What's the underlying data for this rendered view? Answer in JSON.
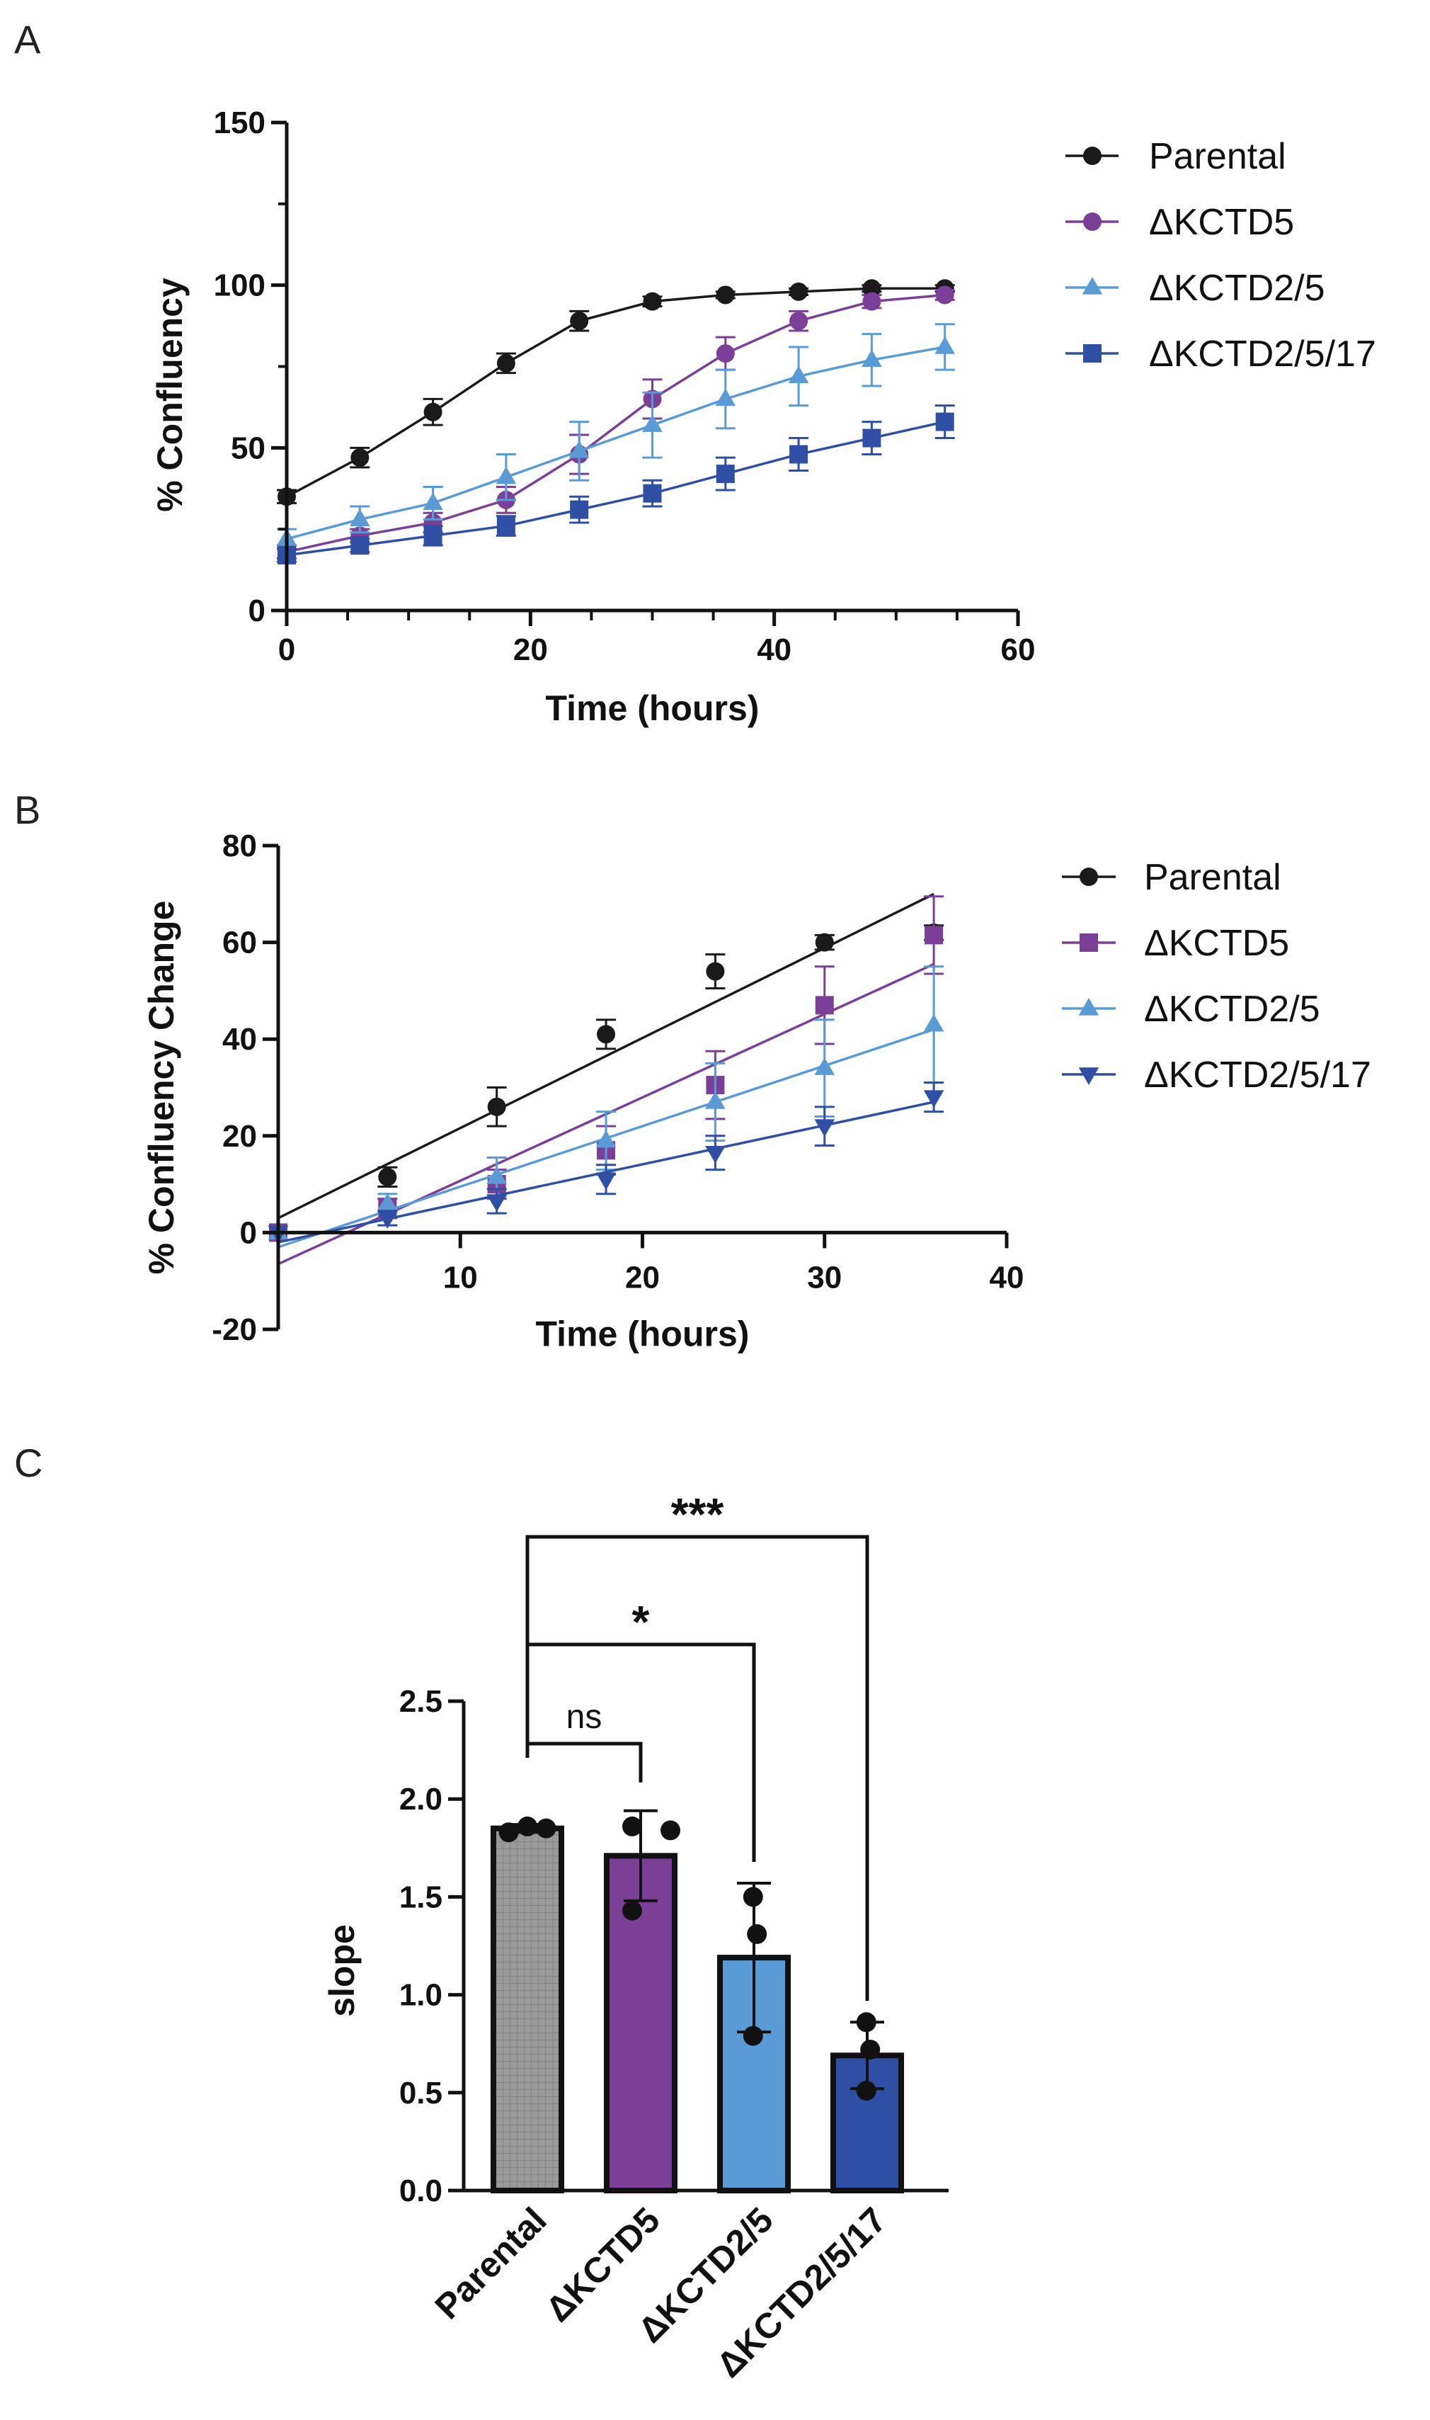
{
  "panels": {
    "a": "A",
    "b": "B",
    "c": "C"
  },
  "colors": {
    "parental": "#1a1a1a",
    "kctd5": "#7b3f98",
    "kctd25": "#5b9bd5",
    "kctd2517": "#2e4fa3",
    "parental_bar": "#9a9a9a"
  },
  "chart_data": [
    {
      "type": "line",
      "panel": "A",
      "title": "",
      "xlabel": "Time (hours)",
      "ylabel": "%  Confluency",
      "xlim": [
        0,
        60
      ],
      "ylim": [
        0,
        150
      ],
      "xticks": [
        0,
        20,
        40,
        60
      ],
      "yticks": [
        0,
        50,
        100,
        150
      ],
      "legend_position": "right",
      "x": [
        0,
        6,
        12,
        18,
        24,
        30,
        36,
        42,
        48,
        54
      ],
      "series": [
        {
          "name": "Parental",
          "key": "parental",
          "marker": "circle",
          "values": [
            35,
            47,
            61,
            76,
            89,
            95,
            97,
            98,
            99,
            99
          ],
          "errors": [
            2,
            3,
            4,
            3,
            3,
            1.5,
            1,
            1,
            1,
            1
          ]
        },
        {
          "name": "ΔKCTD5",
          "key": "kctd5",
          "marker": "circle",
          "values": [
            18,
            23,
            27,
            34,
            48,
            65,
            79,
            89,
            95,
            97
          ],
          "errors": [
            2,
            2,
            3,
            4,
            6,
            6,
            5,
            3,
            2,
            1.5
          ]
        },
        {
          "name": "ΔKCTD2/5",
          "key": "kctd25",
          "marker": "triangle",
          "values": [
            22,
            28,
            33,
            41,
            49,
            57,
            65,
            72,
            77,
            81
          ],
          "errors": [
            3,
            4,
            5,
            7,
            9,
            10,
            9,
            9,
            8,
            7
          ]
        },
        {
          "name": "ΔKCTD2/5/17",
          "key": "kctd2517",
          "marker": "square",
          "values": [
            17,
            20,
            23,
            26,
            31,
            36,
            42,
            48,
            53,
            58
          ],
          "errors": [
            2,
            2,
            3,
            3,
            4,
            4,
            5,
            5,
            5,
            5
          ]
        }
      ]
    },
    {
      "type": "scatter",
      "panel": "B",
      "title": "",
      "xlabel": "Time (hours)",
      "ylabel": "% Confluency Change",
      "xlim": [
        0,
        40
      ],
      "ylim": [
        -20,
        80
      ],
      "xticks": [
        10,
        20,
        30,
        40
      ],
      "yticks": [
        -20,
        0,
        20,
        40,
        60,
        80
      ],
      "legend_position": "right",
      "x": [
        0,
        6,
        12,
        18,
        24,
        30,
        36
      ],
      "series": [
        {
          "name": "Parental",
          "key": "parental",
          "marker": "circle",
          "values": [
            0,
            11.5,
            26,
            41,
            54,
            60,
            62
          ],
          "errors": [
            0,
            2,
            4,
            3,
            3.5,
            1.5,
            1.5
          ],
          "fit": [
            3,
            70
          ]
        },
        {
          "name": "ΔKCTD5",
          "key": "kctd5",
          "marker": "square",
          "values": [
            0,
            5,
            10,
            17,
            30.5,
            47,
            61.5
          ],
          "errors": [
            0,
            2,
            3,
            5,
            7,
            8,
            8
          ],
          "fit": [
            -6.5,
            55.5
          ]
        },
        {
          "name": "ΔKCTD2/5",
          "key": "kctd25",
          "marker": "triangle",
          "values": [
            0,
            6,
            11.5,
            19,
            27,
            34,
            43
          ],
          "errors": [
            0,
            2,
            4,
            6,
            8,
            10,
            12
          ],
          "fit": [
            -3,
            42
          ]
        },
        {
          "name": "ΔKCTD2/5/17",
          "key": "kctd2517",
          "marker": "triangle-down",
          "values": [
            0,
            3,
            6.5,
            11,
            16.5,
            22,
            28
          ],
          "errors": [
            0,
            1.5,
            2.5,
            3,
            3.5,
            4,
            3
          ],
          "fit": [
            -2,
            27
          ]
        }
      ]
    },
    {
      "type": "bar",
      "panel": "C",
      "title": "",
      "xlabel": "",
      "ylabel": "slope",
      "ylim": [
        0,
        2.5
      ],
      "yticks": [
        "0.0",
        "0.5",
        "1.0",
        "1.5",
        "2.0",
        "2.5"
      ],
      "categories": [
        "Parental",
        "ΔKCTD5",
        "ΔKCTD2/5",
        "ΔKCTD2/5/17"
      ],
      "keys": [
        "parental_bar",
        "kctd5",
        "kctd25",
        "kctd2517"
      ],
      "values": [
        1.85,
        1.71,
        1.19,
        0.69
      ],
      "errors": [
        0.02,
        0.23,
        0.38,
        0.17
      ],
      "points": [
        [
          1.83,
          1.86,
          1.85
        ],
        [
          1.86,
          1.84,
          1.43
        ],
        [
          1.5,
          1.31,
          0.79
        ],
        [
          0.86,
          0.72,
          0.51
        ]
      ],
      "comparisons": [
        {
          "from": 0,
          "to": 1,
          "label": "ns"
        },
        {
          "from": 0,
          "to": 2,
          "label": "*"
        },
        {
          "from": 0,
          "to": 3,
          "label": "***"
        }
      ]
    }
  ]
}
